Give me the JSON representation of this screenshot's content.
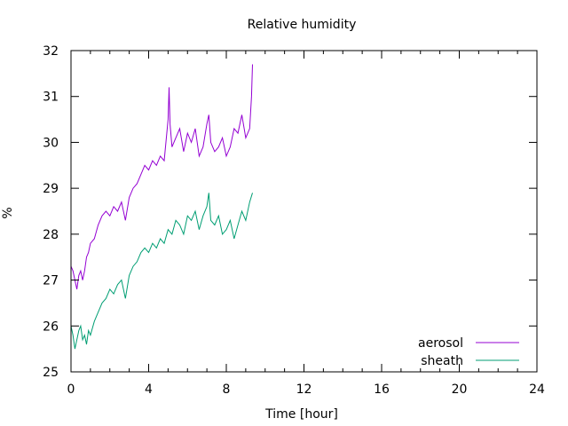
{
  "chart_data": {
    "type": "line",
    "title": "Relative humidity",
    "xlabel": "Time [hour]",
    "ylabel": "%",
    "xlim": [
      0,
      24
    ],
    "ylim": [
      25,
      32
    ],
    "xticks": [
      0,
      4,
      8,
      12,
      16,
      20,
      24
    ],
    "yticks": [
      25,
      26,
      27,
      28,
      29,
      30,
      31,
      32
    ],
    "grid": false,
    "legend_position": "bottom-right",
    "series": [
      {
        "name": "aerosol",
        "color": "#9400d3",
        "x": [
          0.0,
          0.1,
          0.2,
          0.3,
          0.4,
          0.5,
          0.6,
          0.7,
          0.8,
          0.9,
          1.0,
          1.2,
          1.4,
          1.6,
          1.8,
          2.0,
          2.2,
          2.4,
          2.6,
          2.8,
          3.0,
          3.2,
          3.4,
          3.6,
          3.8,
          4.0,
          4.2,
          4.4,
          4.6,
          4.8,
          5.0,
          5.05,
          5.1,
          5.2,
          5.4,
          5.6,
          5.8,
          6.0,
          6.2,
          6.4,
          6.6,
          6.8,
          7.0,
          7.1,
          7.2,
          7.4,
          7.6,
          7.8,
          8.0,
          8.2,
          8.4,
          8.6,
          8.8,
          9.0,
          9.2,
          9.3,
          9.35
        ],
        "y": [
          27.3,
          27.2,
          27.0,
          26.8,
          27.1,
          27.2,
          27.0,
          27.2,
          27.5,
          27.6,
          27.8,
          27.9,
          28.2,
          28.4,
          28.5,
          28.4,
          28.6,
          28.5,
          28.7,
          28.3,
          28.8,
          29.0,
          29.1,
          29.3,
          29.5,
          29.4,
          29.6,
          29.5,
          29.7,
          29.6,
          30.5,
          31.2,
          30.4,
          29.9,
          30.1,
          30.3,
          29.8,
          30.2,
          30.0,
          30.3,
          29.7,
          29.9,
          30.4,
          30.6,
          30.0,
          29.8,
          29.9,
          30.1,
          29.7,
          29.9,
          30.3,
          30.2,
          30.6,
          30.1,
          30.3,
          31.0,
          31.7
        ]
      },
      {
        "name": "sheath",
        "color": "#009e73",
        "x": [
          0.0,
          0.1,
          0.2,
          0.3,
          0.4,
          0.5,
          0.6,
          0.7,
          0.8,
          0.9,
          1.0,
          1.2,
          1.4,
          1.6,
          1.8,
          2.0,
          2.2,
          2.4,
          2.6,
          2.8,
          3.0,
          3.2,
          3.4,
          3.6,
          3.8,
          4.0,
          4.2,
          4.4,
          4.6,
          4.8,
          5.0,
          5.2,
          5.4,
          5.6,
          5.8,
          6.0,
          6.2,
          6.4,
          6.6,
          6.8,
          7.0,
          7.1,
          7.2,
          7.4,
          7.6,
          7.8,
          8.0,
          8.2,
          8.4,
          8.6,
          8.8,
          9.0,
          9.2,
          9.35
        ],
        "y": [
          26.0,
          25.8,
          25.5,
          25.7,
          25.9,
          26.0,
          25.7,
          25.8,
          25.6,
          25.9,
          25.8,
          26.1,
          26.3,
          26.5,
          26.6,
          26.8,
          26.7,
          26.9,
          27.0,
          26.6,
          27.1,
          27.3,
          27.4,
          27.6,
          27.7,
          27.6,
          27.8,
          27.7,
          27.9,
          27.8,
          28.1,
          28.0,
          28.3,
          28.2,
          28.0,
          28.4,
          28.3,
          28.5,
          28.1,
          28.4,
          28.6,
          28.9,
          28.3,
          28.2,
          28.4,
          28.0,
          28.1,
          28.3,
          27.9,
          28.2,
          28.5,
          28.3,
          28.7,
          28.9
        ]
      }
    ]
  }
}
